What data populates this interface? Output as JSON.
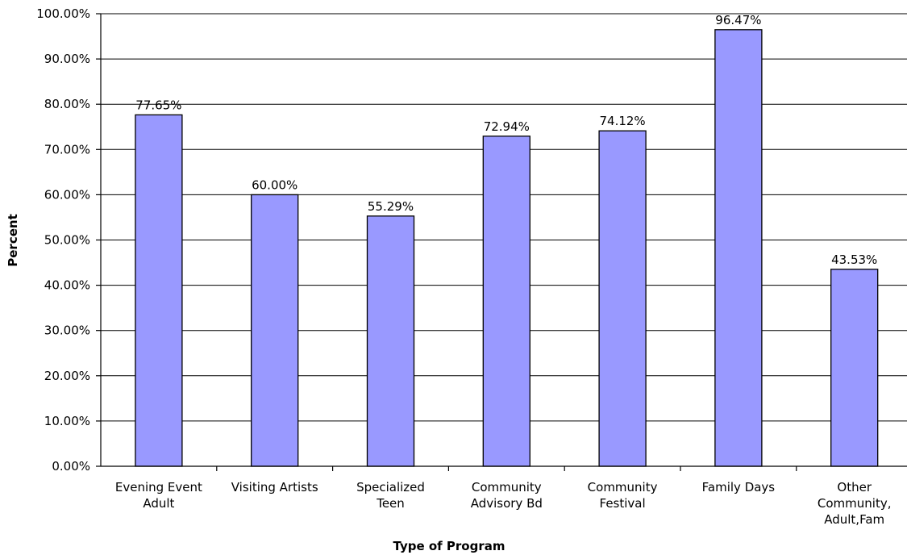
{
  "chart_data": {
    "type": "bar",
    "title": "",
    "xlabel": "Type of Program",
    "ylabel": "Percent",
    "categories": [
      [
        "Evening Event",
        "Adult"
      ],
      [
        "Visiting Artists"
      ],
      [
        "Specialized",
        "Teen"
      ],
      [
        "Community",
        "Advisory Bd"
      ],
      [
        "Community",
        "Festival"
      ],
      [
        "Family Days"
      ],
      [
        "Other",
        "Community,",
        "Adult,Fam"
      ]
    ],
    "values": [
      77.65,
      60.0,
      55.29,
      72.94,
      74.12,
      96.47,
      43.53
    ],
    "data_labels": [
      "77.65%",
      "60.00%",
      "55.29%",
      "72.94%",
      "74.12%",
      "96.47%",
      "43.53%"
    ],
    "ylim": [
      0,
      100
    ],
    "yticks": [
      "0.00%",
      "10.00%",
      "20.00%",
      "30.00%",
      "40.00%",
      "50.00%",
      "60.00%",
      "70.00%",
      "80.00%",
      "90.00%",
      "100.00%"
    ],
    "grid": true,
    "legend": "none",
    "colors": {
      "bar": "#9999ff",
      "bar_edge": "#000000",
      "grid": "#000000"
    }
  }
}
